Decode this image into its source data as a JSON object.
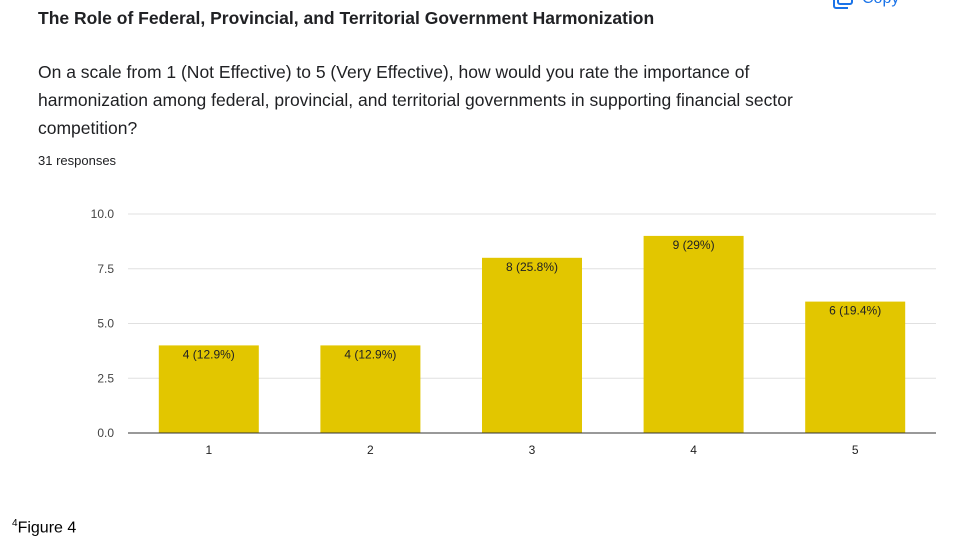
{
  "header": {
    "title": "The Role of Federal, Provincial, and Territorial Government Harmonization",
    "copy_label": "Copy",
    "copy_icon": "copy-icon"
  },
  "question": {
    "text": "On a scale from 1 (Not Effective) to 5 (Very Effective), how would you rate the importance of harmonization among federal, provincial, and territorial governments in supporting financial sector competition?",
    "responses": "31 responses"
  },
  "chart_data": {
    "type": "bar",
    "categories": [
      "1",
      "2",
      "3",
      "4",
      "5"
    ],
    "values": [
      4,
      4,
      8,
      9,
      6
    ],
    "data_labels": [
      "4 (12.9%)",
      "4 (12.9%)",
      "8 (25.8%)",
      "9 (29%)",
      "6 (19.4%)"
    ],
    "yticks": [
      "0.0",
      "2.5",
      "5.0",
      "7.5",
      "10.0"
    ],
    "ylim": [
      0,
      10
    ],
    "grid": true,
    "bar_color": "#e2c600"
  },
  "footnote": {
    "marker": "4",
    "text": "Figure 4"
  }
}
